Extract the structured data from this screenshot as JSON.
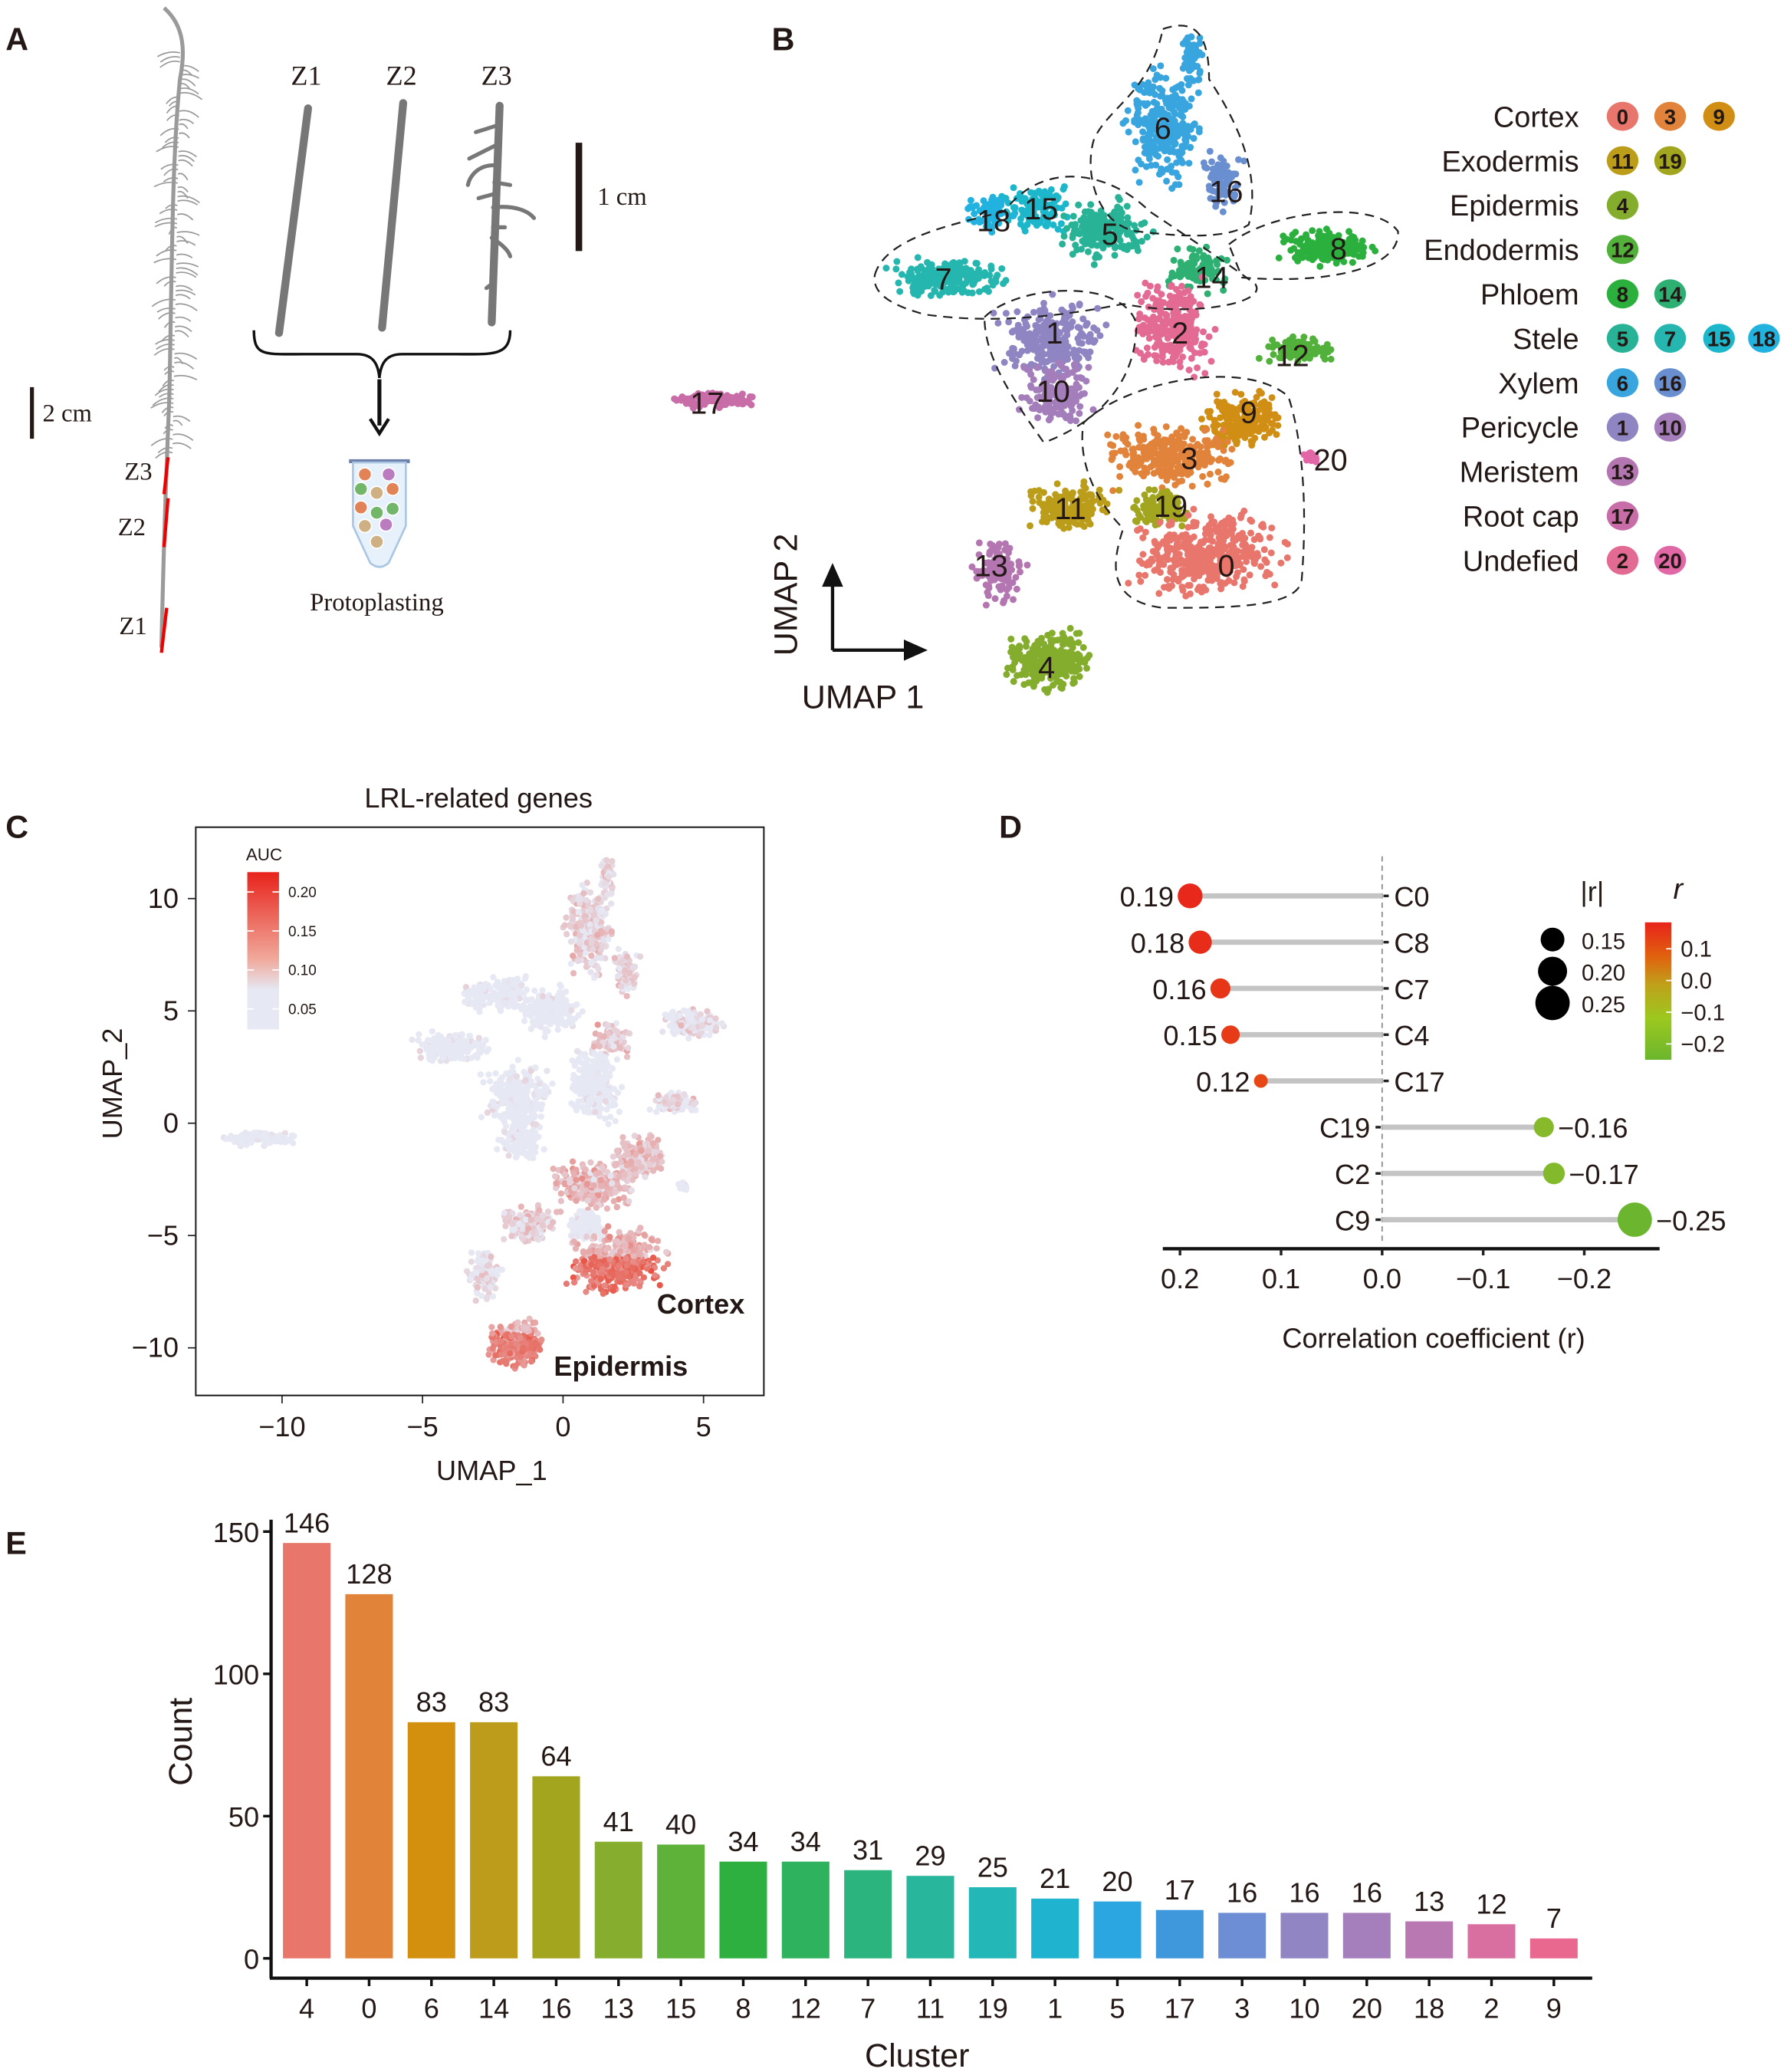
{
  "panels": {
    "A": {
      "label": "A",
      "zones": [
        "Z1",
        "Z2",
        "Z3"
      ],
      "root_zone_labels": [
        "Z3",
        "Z2",
        "Z1"
      ],
      "scale_small": "1 cm",
      "scale_large": "2 cm",
      "process_label": "Protoplasting"
    },
    "B": {
      "label": "B",
      "xlabel": "UMAP 1",
      "ylabel": "UMAP 2",
      "cluster_labels": [
        "0",
        "1",
        "2",
        "3",
        "4",
        "5",
        "6",
        "7",
        "8",
        "9",
        "10",
        "11",
        "12",
        "13",
        "14",
        "15",
        "16",
        "17",
        "18",
        "19",
        "20"
      ],
      "legend": [
        {
          "type": "Cortex",
          "clusters": [
            "0",
            "3",
            "9"
          ]
        },
        {
          "type": "Exodermis",
          "clusters": [
            "11",
            "19"
          ]
        },
        {
          "type": "Epidermis",
          "clusters": [
            "4"
          ]
        },
        {
          "type": "Endodermis",
          "clusters": [
            "12"
          ]
        },
        {
          "type": "Phloem",
          "clusters": [
            "8",
            "14"
          ]
        },
        {
          "type": "Stele",
          "clusters": [
            "5",
            "7",
            "15",
            "18"
          ]
        },
        {
          "type": "Xylem",
          "clusters": [
            "6",
            "16"
          ]
        },
        {
          "type": "Pericycle",
          "clusters": [
            "1",
            "10"
          ]
        },
        {
          "type": "Meristem",
          "clusters": [
            "13"
          ]
        },
        {
          "type": "Root cap",
          "clusters": [
            "17"
          ]
        },
        {
          "type": "Undefied",
          "clusters": [
            "2",
            "20"
          ]
        }
      ],
      "cluster_colors": {
        "0": "#E8766C",
        "1": "#8E85C2",
        "2": "#E36A92",
        "3": "#E1833A",
        "4": "#85AD2D",
        "5": "#29B396",
        "6": "#38A5DE",
        "7": "#24B6AF",
        "8": "#2BB03E",
        "9": "#D08F14",
        "10": "#A37EBB",
        "11": "#BB9D1A",
        "12": "#51B13A",
        "13": "#B476B1",
        "14": "#2EB072",
        "15": "#1DB7CB",
        "16": "#6A8FD0",
        "17": "#C86DA8",
        "18": "#21B2E0",
        "19": "#A2A51E",
        "20": "#E167A6"
      }
    }
  },
  "chart_data": [
    {
      "panel": "C",
      "type": "scatter",
      "title": "LRL-related genes",
      "xlabel": "UMAP_1",
      "ylabel": "UMAP_2",
      "xticks": [
        "−10",
        "−5",
        "0",
        "5"
      ],
      "yticks": [
        "10",
        "5",
        "0",
        "−5",
        "−10"
      ],
      "xlim": [
        -13,
        7
      ],
      "ylim": [
        -12,
        12.5
      ],
      "color_legend": {
        "title": "AUC",
        "ticks": [
          "0.20",
          "0.15",
          "0.10",
          "0.05"
        ],
        "low": "#E6E8F4",
        "high": "#E8231B"
      },
      "annotations": [
        "Cortex",
        "Epidermis"
      ]
    },
    {
      "panel": "D",
      "type": "scatter",
      "subtype": "lollipop",
      "xlabel": "Correlation coefficient (r)",
      "xlim": [
        0.22,
        -0.27
      ],
      "xticks": [
        "0.2",
        "0.1",
        "0.0",
        "−0.1",
        "−0.2"
      ],
      "categories": [
        "C0",
        "C8",
        "C7",
        "C4",
        "C17",
        "C19",
        "C2",
        "C9"
      ],
      "values": [
        0.19,
        0.18,
        0.16,
        0.15,
        0.12,
        -0.16,
        -0.17,
        -0.25
      ],
      "value_labels": [
        "0.19",
        "0.18",
        "0.16",
        "0.15",
        "0.12",
        "−0.16",
        "−0.17",
        "−0.25"
      ],
      "size_legend": {
        "title": "|r|",
        "ticks": [
          "0.15",
          "0.20",
          "0.25"
        ]
      },
      "color_legend": {
        "title": "r",
        "ticks": [
          "0.1",
          "0.0",
          "−0.1",
          "−0.2"
        ],
        "high": "#E8231B",
        "mid": "#C0A01A",
        "low": "#6BB62E"
      }
    },
    {
      "panel": "E",
      "type": "bar",
      "xlabel": "Cluster",
      "ylabel": "Count",
      "ylim": [
        0,
        155
      ],
      "yticks": [
        "0",
        "50",
        "100",
        "150"
      ],
      "categories": [
        "4",
        "0",
        "6",
        "14",
        "16",
        "13",
        "15",
        "8",
        "12",
        "7",
        "11",
        "19",
        "1",
        "5",
        "17",
        "3",
        "10",
        "20",
        "18",
        "2",
        "9"
      ],
      "values": [
        146,
        128,
        83,
        83,
        64,
        41,
        40,
        34,
        34,
        31,
        29,
        25,
        21,
        20,
        17,
        16,
        16,
        16,
        13,
        12,
        7
      ]
    }
  ],
  "panel_labels": {
    "C": "C",
    "D": "D",
    "E": "E"
  }
}
